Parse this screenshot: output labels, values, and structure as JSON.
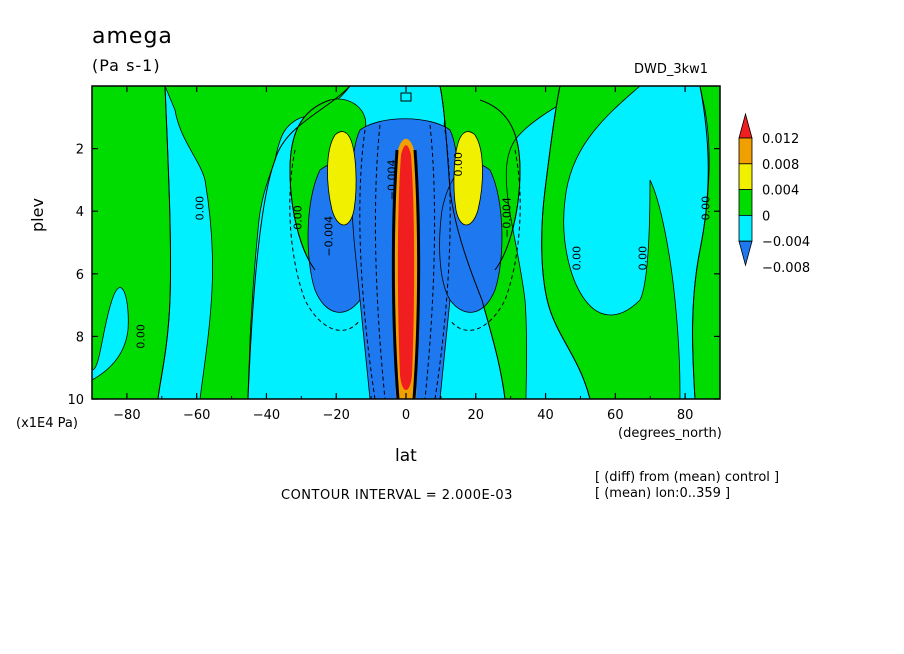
{
  "chart_data": {
    "type": "heatmap",
    "title": "amega",
    "units": "(Pa s-1)",
    "dataset": "DWD_3kw1",
    "xlabel": "lat",
    "x_units": "(degrees_north)",
    "ylabel": "plev",
    "y_units": "(x1E4 Pa)",
    "xlim": [
      -90,
      90
    ],
    "ylim": [
      10,
      0
    ],
    "x_ticks": [
      -80,
      -60,
      -40,
      -20,
      0,
      20,
      40,
      60,
      80
    ],
    "x_tick_labels": [
      "−80",
      "−60",
      "−40",
      "−20",
      "0",
      "20",
      "40",
      "60",
      "80"
    ],
    "y_ticks": [
      2,
      4,
      6,
      8,
      10
    ],
    "y_tick_labels": [
      "2",
      "4",
      "6",
      "8",
      "10"
    ],
    "contour_interval": "CONTOUR INTERVAL = 2.000E-03",
    "notes": [
      "[ (diff) from (mean) control ]",
      "[ (mean) lon:0..359 ]"
    ],
    "colorbar": {
      "colors": [
        "#1e78f0",
        "#00f0ff",
        "#00dc00",
        "#f0f000",
        "#f0a000",
        "#f01e1e"
      ],
      "labels": [
        "0.012",
        "0.008",
        "0.004",
        "0",
        "−0.004",
        "−0.008"
      ],
      "boundaries": [
        -0.008,
        -0.004,
        0,
        0.004,
        0.008,
        0.012
      ]
    },
    "contour_labels": [
      {
        "text": "0.00",
        "lat": -75,
        "plev": 8.0
      },
      {
        "text": "0.00",
        "lat": -58,
        "plev": 3.9
      },
      {
        "text": "0.00",
        "lat": -30,
        "plev": 4.2
      },
      {
        "text": "−0.004",
        "lat": -21,
        "plev": 4.8
      },
      {
        "text": "−0.004",
        "lat": -3,
        "plev": 3.0
      },
      {
        "text": "0.00",
        "lat": 16,
        "plev": 2.5
      },
      {
        "text": "−0.004",
        "lat": 30,
        "plev": 4.2
      },
      {
        "text": "0.00",
        "lat": 50,
        "plev": 5.5
      },
      {
        "text": "0.00",
        "lat": 69,
        "plev": 5.5
      },
      {
        "text": "0.00",
        "lat": 87,
        "plev": 3.9
      }
    ]
  },
  "colors": {
    "band_neg_008": "#1e78f0",
    "band_neg_004": "#00f0ff",
    "band_zero": "#00dc00",
    "band_pos_004": "#f0f000",
    "band_pos_008": "#f0a000",
    "band_pos_012": "#f01e1e"
  }
}
